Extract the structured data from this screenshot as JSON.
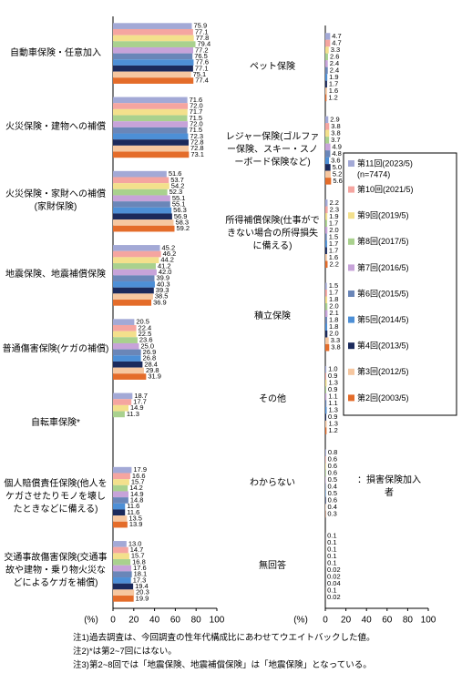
{
  "chart_data": [
    {
      "type": "bar",
      "orientation": "horizontal",
      "categories": [
        "自動車保険・任意加入",
        "火災保険・建物への補償",
        "火災保険・家財への補償(家財保険)",
        "地震保険、地震補償保険",
        "普通傷害保険(ケガの補償)",
        "自転車保険*",
        "個人賠償責任保険(他人をケガさせたりモノを壊したときなどに備える)",
        "交通事故傷害保険(交通事故や建物・乗り物火災などによるケガを補償)"
      ],
      "series": [
        {
          "color": "#a3a9d6",
          "values": [
            75.9,
            71.6,
            51.6,
            45.2,
            20.5,
            18.7,
            17.9,
            13.0
          ],
          "value_labels": [
            "75.9",
            "71.6",
            "51.6",
            "45.2",
            "20.5",
            "18.7",
            "17.9",
            "13.0"
          ]
        },
        {
          "color": "#f5a5a0",
          "values": [
            77.1,
            72.0,
            53.7,
            46.2,
            22.4,
            17.7,
            16.6,
            14.7
          ],
          "value_labels": [
            "77.1",
            "72.0",
            "53.7",
            "46.2",
            "22.4",
            "17.7",
            "16.6",
            "14.7"
          ]
        },
        {
          "color": "#f3e08c",
          "values": [
            77.8,
            71.7,
            54.2,
            44.2,
            22.5,
            14.9,
            15.7,
            15.7
          ],
          "value_labels": [
            "77.8",
            "71.7",
            "54.2",
            "44.2",
            "22.5",
            "14.9",
            "15.7",
            "15.7"
          ]
        },
        {
          "color": "#a9d18e",
          "values": [
            79.4,
            71.5,
            52.3,
            41.2,
            23.6,
            11.3,
            14.2,
            16.8
          ],
          "value_labels": [
            "79.4",
            "71.5",
            "52.3",
            "41.2",
            "23.6",
            "11.3",
            "14.2",
            "16.8"
          ]
        },
        {
          "color": "#c7a3d9",
          "values": [
            77.2,
            72.0,
            55.1,
            42.0,
            25.0,
            null,
            14.9,
            17.6
          ],
          "value_labels": [
            "77.2",
            "72.0",
            "55.1",
            "42.0",
            "25.0",
            null,
            "14.9",
            "17.6"
          ]
        },
        {
          "color": "#6a86b8",
          "values": [
            76.5,
            71.5,
            55.1,
            39.9,
            26.9,
            null,
            14.8,
            18.1
          ],
          "value_labels": [
            "76.5",
            "71.5",
            "55.1",
            "39.9",
            "26.9",
            null,
            "14.8",
            "18.1"
          ]
        },
        {
          "color": "#4d8fd6",
          "values": [
            77.6,
            72.3,
            56.3,
            40.3,
            26.8,
            null,
            11.6,
            17.3
          ],
          "value_labels": [
            "77.6",
            "72.3",
            "56.3",
            "40.3",
            "26.8",
            null,
            "11.6",
            "17.3"
          ]
        },
        {
          "color": "#1b2a5c",
          "values": [
            77.1,
            72.8,
            56.9,
            39.3,
            28.4,
            null,
            11.6,
            19.4
          ],
          "value_labels": [
            "77.1",
            "72.8",
            "56.9",
            "39.3",
            "28.4",
            null,
            "11.6",
            "19.4"
          ]
        },
        {
          "color": "#f6c7a0",
          "values": [
            75.1,
            72.8,
            58.3,
            38.5,
            29.8,
            null,
            13.5,
            20.3
          ],
          "value_labels": [
            "75.1",
            "72.8",
            "58.3",
            "38.5",
            "29.8",
            null,
            "13.5",
            "20.3"
          ]
        },
        {
          "color": "#e46c2a",
          "values": [
            77.4,
            73.1,
            59.2,
            36.9,
            31.9,
            null,
            13.9,
            19.9
          ],
          "value_labels": [
            "77.4",
            "73.1",
            "59.2",
            "36.9",
            "31.9",
            null,
            "13.9",
            "19.9"
          ]
        }
      ],
      "xlim": [
        0,
        100
      ],
      "xticks": [
        0,
        20,
        40,
        60,
        80,
        100
      ],
      "xlabel": "(%)",
      "grid": false
    },
    {
      "type": "bar",
      "orientation": "horizontal",
      "categories": [
        "ペット保険",
        "レジャー保険(ゴルファー保険、スキー・スノーボード保険など)",
        "所得補償保険(仕事ができない場合の所得損失に備える)",
        "積立保険",
        "その他",
        "わからない",
        "無回答"
      ],
      "series": [
        {
          "name": "第11回(2023/5)",
          "note": "(n=7474)",
          "color": "#a3a9d6",
          "values": [
            4.7,
            2.9,
            2.2,
            1.5,
            1.0,
            0.8,
            0.1
          ],
          "value_labels": [
            "4.7",
            "2.9",
            "2.2",
            "1.5",
            "1.0",
            "0.8",
            "0.1"
          ]
        },
        {
          "name": "第10回(2021/5)",
          "color": "#f5a5a0",
          "values": [
            4.7,
            3.8,
            2.3,
            1.7,
            0.9,
            0.6,
            0.1
          ],
          "value_labels": [
            "4.7",
            "3.8",
            "2.3",
            "1.7",
            "0.9",
            "0.6",
            "0.1"
          ]
        },
        {
          "name": "第9回(2019/5)",
          "color": "#f3e08c",
          "values": [
            3.3,
            3.8,
            1.9,
            1.8,
            1.3,
            0.6,
            0.1
          ],
          "value_labels": [
            "3.3",
            "3.8",
            "1.9",
            "1.8",
            "1.3",
            "0.6",
            "0.1"
          ]
        },
        {
          "name": "第8回(2017/5)",
          "color": "#a9d18e",
          "values": [
            2.6,
            3.7,
            1.7,
            2.0,
            0.9,
            0.6,
            0.1
          ],
          "value_labels": [
            "2.6",
            "3.7",
            "1.7",
            "2.0",
            "0.9",
            "0.6",
            "0.1"
          ]
        },
        {
          "name": "第7回(2016/5)",
          "color": "#c7a3d9",
          "values": [
            2.4,
            4.9,
            2.0,
            2.1,
            1.1,
            0.5,
            0.1
          ],
          "value_labels": [
            "2.4",
            "4.9",
            "2.0",
            "2.1",
            "1.1",
            "0.5",
            "0.1"
          ]
        },
        {
          "name": "第6回(2015/5)",
          "color": "#6a86b8",
          "values": [
            2.4,
            4.8,
            1.5,
            1.8,
            1.1,
            0.4,
            0.02
          ],
          "value_labels": [
            "2.4",
            "4.8",
            "1.5",
            "1.8",
            "1.1",
            "0.4",
            "0.02"
          ]
        },
        {
          "name": "第5回(2014/5)",
          "color": "#4d8fd6",
          "values": [
            1.9,
            3.6,
            1.7,
            1.8,
            1.3,
            0.5,
            0.02
          ],
          "value_labels": [
            "1.9",
            "3.6",
            "1.7",
            "1.8",
            "1.3",
            "0.5",
            "0.02"
          ]
        },
        {
          "name": "第4回(2013/5)",
          "color": "#1b2a5c",
          "values": [
            1.7,
            5.0,
            1.7,
            2.0,
            0.9,
            0.6,
            0.04
          ],
          "value_labels": [
            "1.7",
            "5.0",
            "1.7",
            "2.0",
            "0.9",
            "0.6",
            "0.04"
          ]
        },
        {
          "name": "第3回(2012/5)",
          "color": "#f6c7a0",
          "values": [
            1.6,
            5.2,
            1.6,
            3.3,
            1.3,
            0.4,
            0.1
          ],
          "value_labels": [
            "1.6",
            "5.2",
            "1.6",
            "3.3",
            "1.3",
            "0.4",
            "0.1"
          ]
        },
        {
          "name": "第2回(2003/5)",
          "color": "#e46c2a",
          "values": [
            1.2,
            5.6,
            2.2,
            3.8,
            1.2,
            0.3,
            0.02
          ],
          "value_labels": [
            "1.2",
            "5.6",
            "2.2",
            "3.8",
            "1.2",
            "0.3",
            "0.02"
          ]
        }
      ],
      "xlim": [
        0,
        100
      ],
      "xticks": [
        0,
        20,
        40,
        60,
        80,
        100
      ],
      "xlabel": "(%)",
      "grid": false,
      "legend": "right",
      "annotation": "：損害保険加入者"
    }
  ],
  "notes": [
    "注1)過去調査は、今回調査の性年代構成比にあわせてウエイトバックした値。",
    "注2)*は第2~7回にはない。",
    "注3)第2~8回では「地震保険、地震補償保険」は「地震保険」となっている。"
  ]
}
